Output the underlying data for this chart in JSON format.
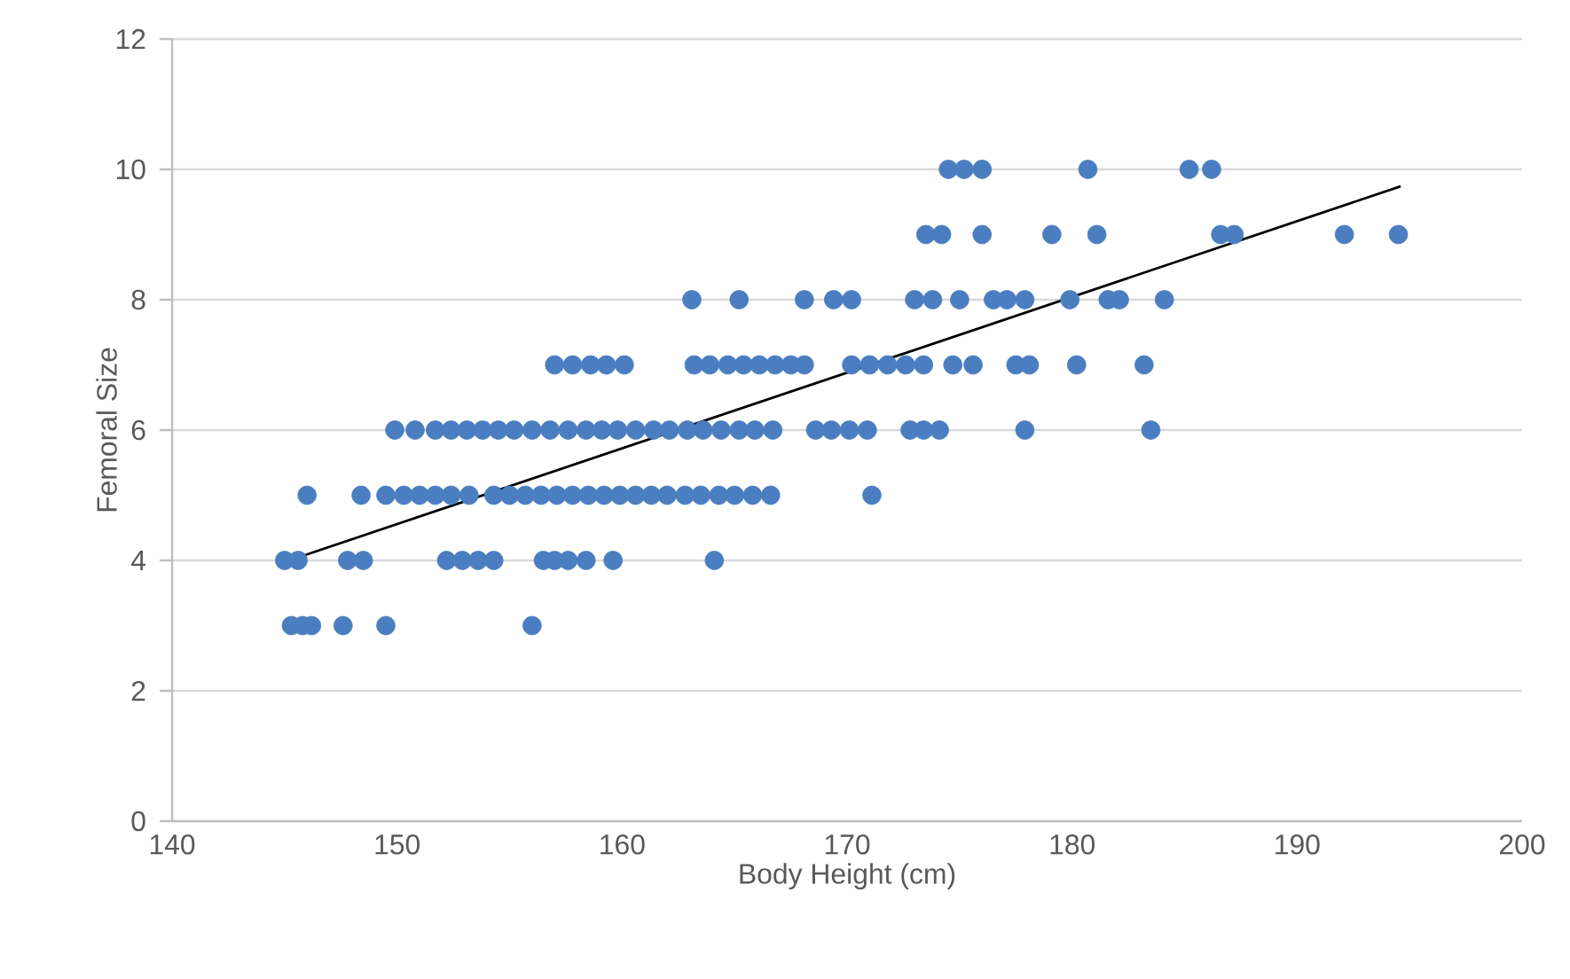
{
  "chart_data": {
    "type": "scatter",
    "xlabel": "Body Height (cm)",
    "ylabel": "Femoral Size",
    "xlim": [
      140,
      200
    ],
    "xticks": [
      140,
      150,
      160,
      170,
      180,
      190,
      200
    ],
    "ylim": [
      0,
      12
    ],
    "yticks": [
      0,
      2,
      4,
      6,
      8,
      10,
      12
    ],
    "grid": "y",
    "series": [
      {
        "marker": "circle",
        "color": "#4a7ec0",
        "x": [
          145.3,
          145.8,
          146.2,
          147.6,
          149.5,
          156.0,
          145.0,
          145.6,
          147.8,
          148.5,
          152.2,
          152.9,
          153.6,
          154.3,
          156.5,
          157.0,
          157.6,
          158.4,
          159.6,
          164.1,
          146.0,
          148.4,
          149.5,
          150.3,
          151.0,
          151.7,
          152.4,
          153.2,
          154.3,
          155.0,
          155.7,
          156.4,
          157.1,
          157.8,
          158.5,
          159.2,
          159.9,
          160.6,
          161.3,
          162.0,
          162.8,
          163.5,
          164.3,
          165.0,
          165.8,
          166.6,
          171.1,
          149.9,
          150.8,
          151.7,
          152.4,
          153.1,
          153.8,
          154.5,
          155.2,
          156.0,
          156.8,
          157.6,
          158.4,
          159.1,
          159.8,
          160.6,
          161.4,
          162.1,
          162.9,
          163.6,
          164.4,
          165.2,
          165.9,
          166.7,
          168.6,
          169.3,
          170.1,
          170.9,
          172.8,
          173.4,
          174.1,
          177.9,
          183.5,
          157.0,
          157.8,
          158.6,
          159.3,
          160.1,
          163.2,
          163.9,
          164.7,
          165.4,
          166.1,
          166.8,
          167.5,
          168.1,
          170.2,
          171.0,
          171.8,
          172.6,
          173.4,
          174.7,
          175.6,
          177.5,
          178.1,
          180.2,
          183.2,
          163.1,
          165.2,
          168.1,
          169.4,
          170.2,
          173.0,
          173.8,
          175.0,
          176.5,
          177.1,
          177.9,
          179.9,
          181.6,
          182.1,
          184.1,
          173.5,
          174.2,
          176.0,
          179.1,
          181.1,
          186.6,
          187.2,
          192.1,
          194.5,
          174.5,
          175.2,
          176.0,
          180.7,
          185.2,
          186.2
        ],
        "values": [
          3,
          3,
          3,
          3,
          3,
          3,
          4,
          4,
          4,
          4,
          4,
          4,
          4,
          4,
          4,
          4,
          4,
          4,
          4,
          4,
          5,
          5,
          5,
          5,
          5,
          5,
          5,
          5,
          5,
          5,
          5,
          5,
          5,
          5,
          5,
          5,
          5,
          5,
          5,
          5,
          5,
          5,
          5,
          5,
          5,
          5,
          5,
          6,
          6,
          6,
          6,
          6,
          6,
          6,
          6,
          6,
          6,
          6,
          6,
          6,
          6,
          6,
          6,
          6,
          6,
          6,
          6,
          6,
          6,
          6,
          6,
          6,
          6,
          6,
          6,
          6,
          6,
          6,
          6,
          7,
          7,
          7,
          7,
          7,
          7,
          7,
          7,
          7,
          7,
          7,
          7,
          7,
          7,
          7,
          7,
          7,
          7,
          7,
          7,
          7,
          7,
          7,
          7,
          8,
          8,
          8,
          8,
          8,
          8,
          8,
          8,
          8,
          8,
          8,
          8,
          8,
          8,
          8,
          9,
          9,
          9,
          9,
          9,
          9,
          9,
          9,
          9,
          10,
          10,
          10,
          10,
          10,
          10
        ]
      },
      {
        "type": "line",
        "color": "#000000",
        "x": [
          145.2,
          194.6
        ],
        "values": [
          4.0,
          9.74
        ]
      }
    ]
  }
}
